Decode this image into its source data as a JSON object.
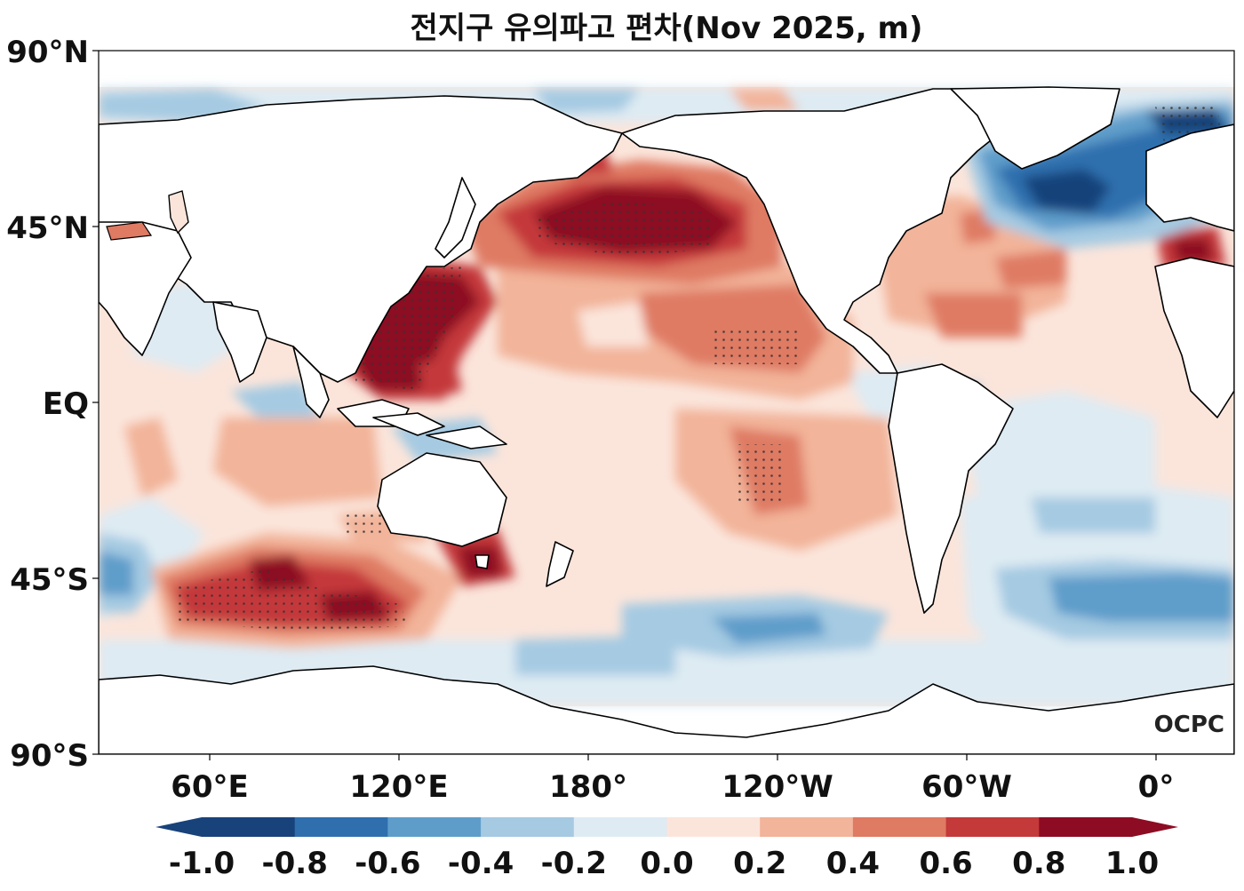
{
  "title": "전지구 유의파고 편차(Nov 2025, m)",
  "lat_labels": [
    "90°N",
    "45°N",
    "EQ",
    "45°S",
    "90°S"
  ],
  "lon_labels": [
    "60°E",
    "120°E",
    "180°",
    "120°W",
    "60°W",
    "0°"
  ],
  "colorbar": {
    "ticks": [
      "-1.0",
      "-0.8",
      "-0.6",
      "-0.4",
      "-0.2",
      "0.0",
      "0.2",
      "0.4",
      "0.6",
      "0.8",
      "1.0"
    ],
    "colors": [
      "#18427a",
      "#2f6fae",
      "#5e9dca",
      "#a5cae2",
      "#deebf3",
      "#fbe5db",
      "#f2b49a",
      "#df7a63",
      "#c4393a",
      "#8d0c23"
    ],
    "extend": "both"
  },
  "logo": "OCPC",
  "legend_colors": {
    "strong_negative": "#18427a",
    "negative": "#5e9dca",
    "weak_negative": "#deebf3",
    "weak_positive": "#fbe5db",
    "positive": "#df7a63",
    "strong_positive": "#8d0c23",
    "land": "#ffffff",
    "coast": "#000000"
  }
}
